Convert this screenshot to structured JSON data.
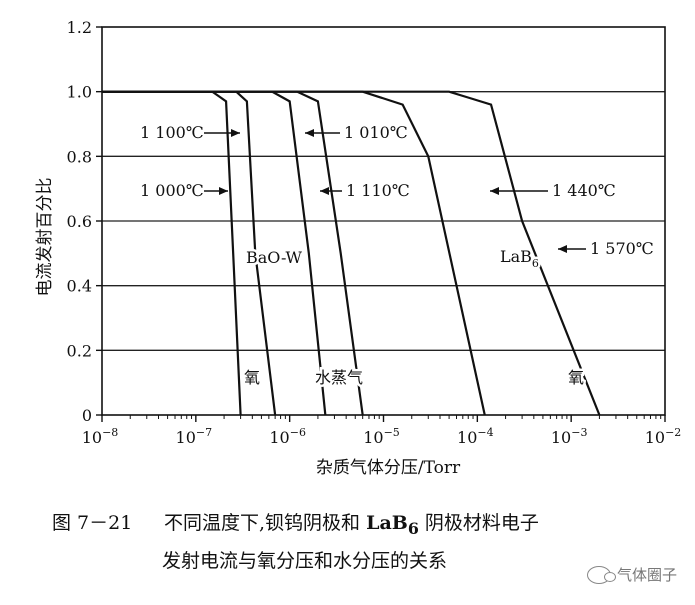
{
  "chart_data": {
    "type": "line",
    "ylabel": "电流发射百分比",
    "xlabel": "杂质气体分压/Torr",
    "x_scale": "log",
    "xlim": [
      1e-08,
      0.01
    ],
    "ylim": [
      0,
      1.2
    ],
    "x_ticks": [
      {
        "value": 1e-08,
        "base": "10",
        "exp": "−8"
      },
      {
        "value": 1e-07,
        "base": "10",
        "exp": "−7"
      },
      {
        "value": 1e-06,
        "base": "10",
        "exp": "−6"
      },
      {
        "value": 1e-05,
        "base": "10",
        "exp": "−5"
      },
      {
        "value": 0.0001,
        "base": "10",
        "exp": "−4"
      },
      {
        "value": 0.001,
        "base": "10",
        "exp": "−3"
      },
      {
        "value": 0.01,
        "base": "10",
        "exp": "−2"
      }
    ],
    "y_ticks": [
      {
        "value": 0,
        "label": "0"
      },
      {
        "value": 0.2,
        "label": "0.2"
      },
      {
        "value": 0.4,
        "label": "0.4"
      },
      {
        "value": 0.6,
        "label": "0.6"
      },
      {
        "value": 0.8,
        "label": "0.8"
      },
      {
        "value": 1.0,
        "label": "1.0"
      },
      {
        "value": 1.2,
        "label": "1.2"
      }
    ],
    "grid_y": true,
    "series": [
      {
        "name": "1 000℃",
        "material": "BaO-W",
        "gas": "氧",
        "points": [
          [
            1e-08,
            1.0
          ],
          [
            1.5e-07,
            1.0
          ],
          [
            2.1e-07,
            0.97
          ],
          [
            2.5e-07,
            0.5
          ],
          [
            3e-07,
            0.0
          ]
        ]
      },
      {
        "name": "1 100℃",
        "material": "BaO-W",
        "gas": "氧",
        "points": [
          [
            1e-08,
            1.0
          ],
          [
            2.7e-07,
            1.0
          ],
          [
            3.5e-07,
            0.97
          ],
          [
            4.3e-07,
            0.5
          ],
          [
            7e-07,
            0.0
          ]
        ]
      },
      {
        "name": "1 010℃",
        "material": "BaO-W",
        "gas": "水蒸气",
        "points": [
          [
            1e-08,
            1.0
          ],
          [
            6.5e-07,
            1.0
          ],
          [
            1e-06,
            0.97
          ],
          [
            1.6e-06,
            0.5
          ],
          [
            2.4e-06,
            0.0
          ]
        ]
      },
      {
        "name": "1 110℃",
        "material": "BaO-W",
        "gas": "水蒸气",
        "points": [
          [
            1e-08,
            1.0
          ],
          [
            1.2e-06,
            1.0
          ],
          [
            2e-06,
            0.97
          ],
          [
            3.5e-06,
            0.5
          ],
          [
            6e-06,
            0.0
          ]
        ]
      },
      {
        "name": "1 440℃",
        "material": "LaB6",
        "gas": "氧",
        "points": [
          [
            1e-08,
            1.0
          ],
          [
            6e-06,
            1.0
          ],
          [
            1.6e-05,
            0.96
          ],
          [
            3e-05,
            0.8
          ],
          [
            0.00012,
            0.0
          ]
        ]
      },
      {
        "name": "1 570℃",
        "material": "LaB6",
        "gas": "氧",
        "points": [
          [
            1e-08,
            1.0
          ],
          [
            5e-05,
            1.0
          ],
          [
            0.00014,
            0.96
          ],
          [
            0.0003,
            0.6
          ],
          [
            0.002,
            0.0
          ]
        ]
      }
    ],
    "annotations": [
      {
        "id": "t1100",
        "text": "1 100℃"
      },
      {
        "id": "t1000",
        "text": "1 000℃"
      },
      {
        "id": "t1010",
        "text": "1 010℃"
      },
      {
        "id": "t1110",
        "text": "1 110℃"
      },
      {
        "id": "t1440",
        "text": "1 440℃"
      },
      {
        "id": "t1570",
        "text": "1 570℃"
      },
      {
        "id": "bao",
        "text": "BaO-W"
      },
      {
        "id": "lab6",
        "text": "LaB",
        "sub": "6"
      },
      {
        "id": "o2-left",
        "text": "氧"
      },
      {
        "id": "water",
        "text": "水蒸气"
      },
      {
        "id": "o2-right",
        "text": "氧"
      }
    ]
  },
  "caption": {
    "fig_num": "图 7－21",
    "line1_a": "不同温度下,钡钨阴极和 ",
    "line1_lab": "LaB",
    "line1_sub": "6",
    "line1_b": " 阴极材料电子",
    "line2": "发射电流与氧分压和水分压的关系"
  },
  "watermark": {
    "text": "气体圈子",
    "icon": "wechat-icon"
  }
}
